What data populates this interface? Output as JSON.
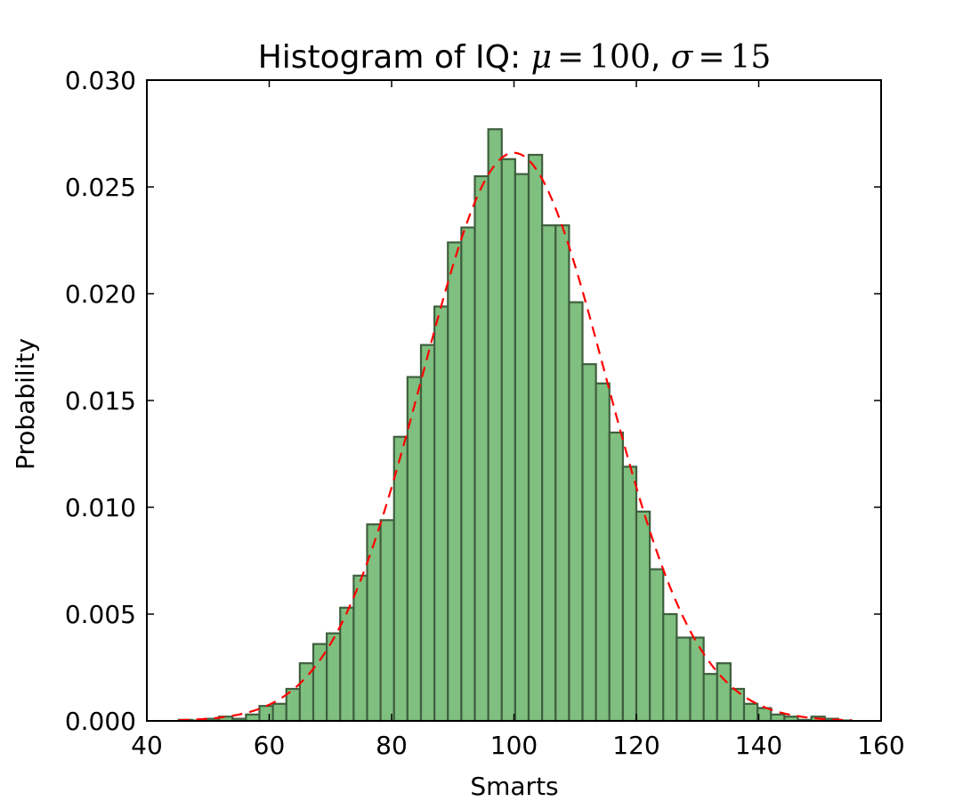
{
  "chart_data": {
    "type": "bar",
    "title": {
      "prefix": "Histogram of IQ: ",
      "mu_symbol": "μ",
      "equals": "=",
      "mu_value": "100",
      "separator": ", ",
      "sigma_symbol": "σ",
      "sigma_value": "15"
    },
    "xlabel": "Smarts",
    "ylabel": "Probability",
    "xlim": [
      40,
      160
    ],
    "ylim": [
      0,
      0.03
    ],
    "xticks": [
      "40",
      "60",
      "80",
      "100",
      "120",
      "140",
      "160"
    ],
    "yticks": [
      "0.000",
      "0.005",
      "0.010",
      "0.015",
      "0.020",
      "0.025",
      "0.030"
    ],
    "grid": false,
    "bin_edges": [
      45.2,
      47.4,
      49.6,
      51.8,
      54.0,
      56.2,
      58.4,
      60.6,
      62.8,
      65.0,
      67.2,
      69.4,
      71.6,
      73.8,
      76.0,
      78.2,
      80.4,
      82.6,
      84.8,
      87.0,
      89.2,
      91.4,
      93.6,
      95.8,
      98.0,
      100.2,
      102.4,
      104.6,
      106.8,
      109.0,
      111.2,
      113.4,
      115.6,
      117.8,
      120.0,
      122.2,
      124.4,
      126.6,
      128.8,
      131.0,
      133.2,
      135.4,
      137.6,
      139.8,
      142.0,
      144.2,
      146.4,
      148.6,
      150.8,
      153.0,
      155.2
    ],
    "values": [
      5e-05,
      2e-05,
      0.0001,
      0.0002,
      0.0001,
      0.0003,
      0.0007,
      0.0008,
      0.0015,
      0.0027,
      0.0036,
      0.0041,
      0.0053,
      0.0068,
      0.0092,
      0.0094,
      0.0133,
      0.0161,
      0.0176,
      0.0194,
      0.0224,
      0.0231,
      0.0255,
      0.0277,
      0.0263,
      0.0256,
      0.0265,
      0.0232,
      0.0232,
      0.0196,
      0.0167,
      0.0158,
      0.0135,
      0.0119,
      0.0098,
      0.0071,
      0.005,
      0.0039,
      0.0039,
      0.0022,
      0.0027,
      0.0015,
      0.0008,
      0.0006,
      0.0003,
      0.0002,
      5e-05,
      0.0002,
      0.0001,
      2e-05
    ],
    "bar_color": "#7fbf7f",
    "bar_edge_color": "#3f5f3f",
    "fit_curve": {
      "mu": 100,
      "sigma": 15,
      "style": "dashed",
      "color": "#ff0000"
    }
  }
}
